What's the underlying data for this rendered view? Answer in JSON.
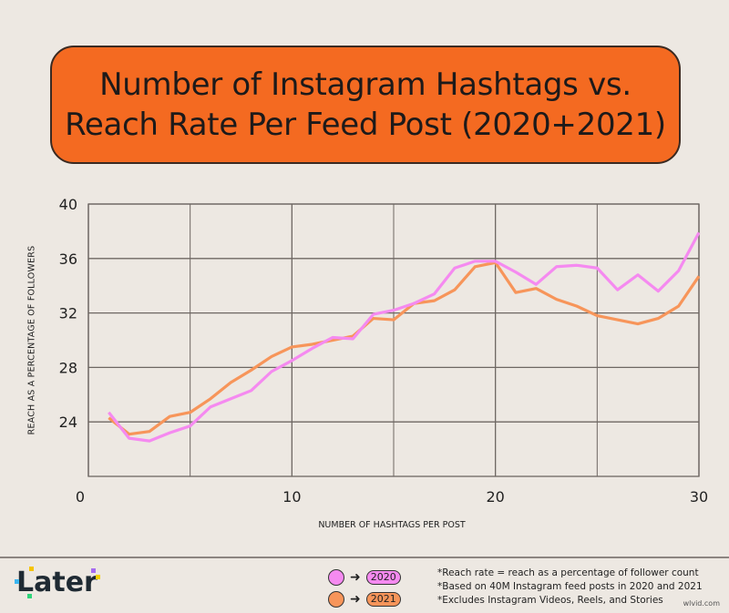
{
  "title": {
    "line1": "Number of Instagram Hashtags vs.",
    "line2": "Reach Rate Per Feed Post (2020+2021)",
    "bg_color": "#f46a21"
  },
  "chart_data": {
    "type": "line",
    "title": "Number of Instagram Hashtags vs. Reach Rate Per Feed Post (2020+2021)",
    "xlabel": "NUMBER OF HASHTAGS PER POST",
    "ylabel": "REACH AS A PERCENTAGE OF FOLLOWERS",
    "xlim": [
      0,
      30
    ],
    "ylim": [
      20,
      40
    ],
    "xticks": [
      "0",
      "10",
      "20",
      "30"
    ],
    "yticks": [
      "24",
      "28",
      "32",
      "36",
      "40"
    ],
    "grid": true,
    "x": [
      1,
      2,
      3,
      4,
      5,
      6,
      7,
      8,
      9,
      10,
      11,
      12,
      13,
      14,
      15,
      16,
      17,
      18,
      19,
      20,
      21,
      22,
      23,
      24,
      25,
      26,
      27,
      28,
      29,
      30
    ],
    "series": [
      {
        "name": "2020",
        "color": "#f58af0",
        "values": [
          24.7,
          22.8,
          22.6,
          23.2,
          23.7,
          25.1,
          25.7,
          26.3,
          27.7,
          28.5,
          29.4,
          30.2,
          30.1,
          31.9,
          32.2,
          32.7,
          33.4,
          35.3,
          35.8,
          35.8,
          35.0,
          34.1,
          35.4,
          35.5,
          35.3,
          33.7,
          34.8,
          33.6,
          35.1,
          37.9
        ]
      },
      {
        "name": "2021",
        "color": "#f7955a",
        "values": [
          24.3,
          23.1,
          23.3,
          24.4,
          24.7,
          25.7,
          26.9,
          27.8,
          28.8,
          29.5,
          29.7,
          30.0,
          30.3,
          31.6,
          31.5,
          32.7,
          32.9,
          33.7,
          35.4,
          35.7,
          33.5,
          33.8,
          33.0,
          32.5,
          31.8,
          31.5,
          31.2,
          31.6,
          32.5,
          34.7
        ]
      }
    ]
  },
  "footer": {
    "logo": "Later",
    "legend": [
      "2020",
      "2021"
    ],
    "notes": [
      "*Reach rate = reach as a percentage of follower count",
      "*Based on 40M Instagram feed posts in 2020 and 2021",
      "*Excludes Instagram Videos, Reels, and Stories"
    ],
    "watermark": "wlvid.com"
  }
}
